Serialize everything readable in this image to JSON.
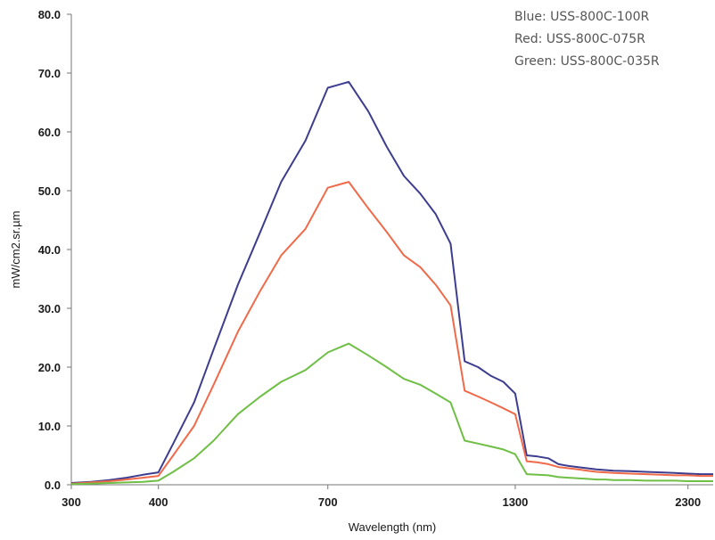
{
  "chart_data": {
    "type": "line",
    "title": "",
    "xlabel": "Wavelength (nm)",
    "ylabel": "mW/cm2.sr.µm",
    "xscale": "log",
    "xlim": [
      300,
      2500
    ],
    "ylim": [
      0,
      80
    ],
    "x_ticks": [
      {
        "value": 300,
        "label": "300"
      },
      {
        "value": 400,
        "label": "400"
      },
      {
        "value": 700,
        "label": "700"
      },
      {
        "value": 1300,
        "label": "1300"
      },
      {
        "value": 2300,
        "label": "2300"
      }
    ],
    "y_ticks": [
      {
        "value": 0,
        "label": "0.0"
      },
      {
        "value": 10,
        "label": "10.0"
      },
      {
        "value": 20,
        "label": "20.0"
      },
      {
        "value": 30,
        "label": "30.0"
      },
      {
        "value": 40,
        "label": "40.0"
      },
      {
        "value": 50,
        "label": "50.0"
      },
      {
        "value": 60,
        "label": "60.0"
      },
      {
        "value": 70,
        "label": "70.0"
      },
      {
        "value": 80,
        "label": "80.0"
      }
    ],
    "grid": false,
    "legend_placement": "top-right",
    "legend_lines": [
      "Blue: USS-800C-100R",
      "Red: USS-800C-075R",
      "Green: USS-800C-035R"
    ],
    "x": [
      300,
      320,
      340,
      360,
      380,
      400,
      420,
      450,
      480,
      520,
      560,
      600,
      650,
      700,
      750,
      800,
      850,
      900,
      950,
      1000,
      1050,
      1100,
      1150,
      1200,
      1250,
      1300,
      1350,
      1400,
      1450,
      1500,
      1550,
      1600,
      1650,
      1700,
      1750,
      1800,
      1900,
      2000,
      2100,
      2200,
      2300,
      2400,
      2500
    ],
    "series": [
      {
        "color": "#3d3d8f",
        "values": [
          0.3,
          0.5,
          0.8,
          1.2,
          1.7,
          2.1,
          7.0,
          14.0,
          23.0,
          34.0,
          43.0,
          51.5,
          58.5,
          67.5,
          68.5,
          63.5,
          57.5,
          52.5,
          49.5,
          46.0,
          41.0,
          21.0,
          20.0,
          18.5,
          17.5,
          15.5,
          5.0,
          4.8,
          4.5,
          3.5,
          3.2,
          3.0,
          2.8,
          2.6,
          2.5,
          2.4,
          2.3,
          2.2,
          2.1,
          2.0,
          1.9,
          1.8,
          1.8
        ]
      },
      {
        "color": "#f06a4a",
        "values": [
          0.2,
          0.4,
          0.6,
          0.9,
          1.2,
          1.5,
          5.0,
          10.0,
          17.0,
          26.0,
          33.0,
          39.0,
          43.5,
          50.5,
          51.5,
          47.0,
          43.0,
          39.0,
          37.0,
          34.0,
          30.5,
          16.0,
          15.0,
          14.0,
          13.0,
          12.0,
          4.0,
          3.8,
          3.5,
          3.0,
          2.8,
          2.6,
          2.4,
          2.2,
          2.1,
          2.0,
          1.9,
          1.8,
          1.7,
          1.6,
          1.6,
          1.5,
          1.5
        ]
      },
      {
        "color": "#6fbf46",
        "values": [
          0.1,
          0.2,
          0.3,
          0.4,
          0.5,
          0.7,
          2.2,
          4.5,
          7.5,
          12.0,
          15.0,
          17.5,
          19.5,
          22.5,
          24.0,
          22.0,
          20.0,
          18.0,
          17.0,
          15.5,
          14.0,
          7.5,
          7.0,
          6.5,
          6.0,
          5.2,
          1.8,
          1.7,
          1.6,
          1.3,
          1.2,
          1.1,
          1.0,
          0.9,
          0.9,
          0.8,
          0.8,
          0.7,
          0.7,
          0.7,
          0.6,
          0.6,
          0.6
        ]
      }
    ]
  }
}
